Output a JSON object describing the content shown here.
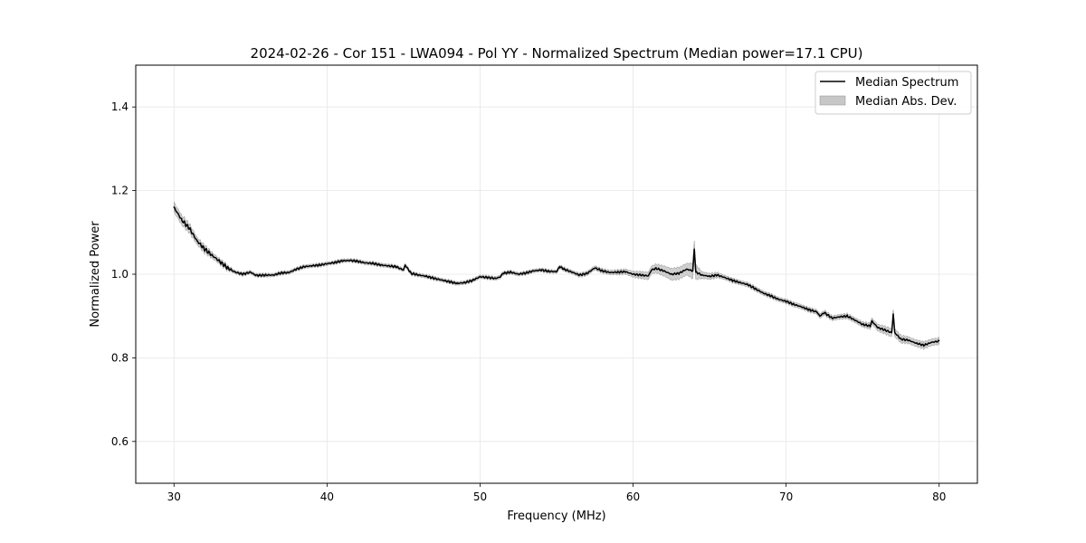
{
  "chart_data": {
    "type": "line",
    "title": "2024-02-26 - Cor 151 - LWA094 - Pol YY - Normalized Spectrum (Median power=17.1 CPU)",
    "xlabel": "Frequency (MHz)",
    "ylabel": "Normalized Power",
    "xlim": [
      27.5,
      82.5
    ],
    "ylim": [
      0.5,
      1.5
    ],
    "xticks": [
      30,
      40,
      50,
      60,
      70,
      80
    ],
    "yticks": [
      0.6,
      0.8,
      1.0,
      1.2,
      1.4
    ],
    "xtick_labels": [
      "30",
      "40",
      "50",
      "60",
      "70",
      "80"
    ],
    "ytick_labels": [
      "0.6",
      "0.8",
      "1.0",
      "1.2",
      "1.4"
    ],
    "grid": true,
    "legend_position": "top-right",
    "legend": [
      "Median Spectrum",
      "Median Abs. Dev."
    ],
    "series": [
      {
        "name": "Median Spectrum",
        "color": "#000000",
        "x": [
          30.0,
          30.5,
          31.0,
          31.5,
          32.0,
          32.5,
          33.0,
          33.5,
          34.0,
          34.5,
          35.0,
          35.3,
          35.5,
          36.0,
          36.5,
          37.0,
          37.5,
          38.0,
          38.5,
          39.0,
          39.5,
          40.0,
          40.5,
          41.0,
          41.5,
          42.0,
          42.5,
          43.0,
          43.5,
          44.0,
          44.5,
          45.0,
          45.1,
          45.5,
          46.0,
          46.5,
          47.0,
          47.5,
          48.0,
          48.5,
          49.0,
          49.5,
          50.0,
          50.5,
          51.0,
          51.3,
          51.5,
          52.0,
          52.5,
          53.0,
          53.5,
          54.0,
          54.5,
          55.0,
          55.2,
          55.5,
          56.0,
          56.5,
          57.0,
          57.3,
          57.5,
          58.0,
          58.5,
          59.0,
          59.5,
          60.0,
          60.5,
          61.0,
          61.2,
          61.5,
          62.0,
          62.5,
          63.0,
          63.5,
          63.9,
          64.0,
          64.1,
          64.5,
          65.0,
          65.5,
          66.0,
          66.5,
          67.0,
          67.5,
          68.0,
          68.5,
          69.0,
          69.5,
          70.0,
          70.5,
          71.0,
          71.5,
          72.0,
          72.2,
          72.5,
          73.0,
          73.5,
          74.0,
          74.5,
          75.0,
          75.5,
          75.6,
          76.0,
          76.5,
          76.9,
          77.0,
          77.1,
          77.5,
          78.0,
          78.5,
          79.0,
          79.5,
          80.0
        ],
        "y": [
          1.16,
          1.13,
          1.11,
          1.08,
          1.06,
          1.045,
          1.03,
          1.015,
          1.005,
          1.0,
          1.005,
          0.998,
          0.997,
          0.998,
          0.998,
          1.003,
          1.004,
          1.012,
          1.018,
          1.02,
          1.022,
          1.025,
          1.028,
          1.032,
          1.033,
          1.031,
          1.027,
          1.026,
          1.022,
          1.02,
          1.018,
          1.01,
          1.022,
          1.002,
          0.998,
          0.995,
          0.99,
          0.986,
          0.982,
          0.978,
          0.98,
          0.985,
          0.994,
          0.992,
          0.99,
          0.993,
          1.002,
          1.005,
          1.0,
          1.003,
          1.008,
          1.01,
          1.007,
          1.006,
          1.018,
          1.012,
          1.005,
          0.998,
          1.002,
          1.01,
          1.015,
          1.008,
          1.004,
          1.005,
          1.006,
          1.0,
          0.998,
          0.996,
          1.01,
          1.014,
          1.008,
          1.0,
          1.002,
          1.012,
          1.008,
          1.06,
          1.005,
          0.998,
          0.995,
          0.998,
          0.992,
          0.985,
          0.98,
          0.975,
          0.965,
          0.955,
          0.948,
          0.94,
          0.935,
          0.928,
          0.922,
          0.915,
          0.91,
          0.9,
          0.908,
          0.895,
          0.898,
          0.9,
          0.89,
          0.88,
          0.876,
          0.888,
          0.872,
          0.866,
          0.86,
          0.905,
          0.86,
          0.845,
          0.842,
          0.835,
          0.83,
          0.837,
          0.84
        ]
      },
      {
        "name": "Median Abs. Dev.",
        "color": "#c7c7c7",
        "x": [
          30.0,
          31.0,
          32.0,
          34.0,
          40.0,
          50.0,
          55.0,
          58.0,
          59.5,
          60.5,
          61.5,
          62.5,
          63.5,
          64.0,
          64.5,
          66.0,
          70.0,
          75.0,
          77.0,
          78.0,
          79.0,
          80.0
        ],
        "dev": [
          0.012,
          0.01,
          0.008,
          0.004,
          0.004,
          0.004,
          0.004,
          0.005,
          0.006,
          0.008,
          0.01,
          0.014,
          0.014,
          0.02,
          0.008,
          0.005,
          0.005,
          0.006,
          0.01,
          0.008,
          0.008,
          0.008
        ]
      }
    ]
  }
}
